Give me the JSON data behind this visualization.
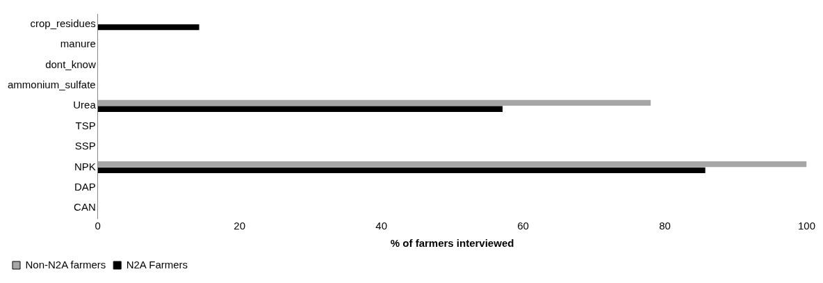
{
  "chart_data": {
    "type": "bar",
    "orientation": "horizontal",
    "xlabel": "% of farmers interviewed",
    "categories": [
      "crop_residues",
      "manure",
      "dont_know",
      "ammonium_sulfate",
      "Urea",
      "TSP",
      "SSP",
      "NPK",
      "DAP",
      "CAN"
    ],
    "series": [
      {
        "name": "Non-N2A farmers",
        "color": "#a6a6a6",
        "values": [
          0,
          0,
          0,
          0,
          78,
          0,
          0,
          100,
          0,
          0
        ]
      },
      {
        "name": "N2A Farmers",
        "color": "#000000",
        "values": [
          14.3,
          0,
          0,
          0,
          57.1,
          0,
          0,
          85.7,
          0,
          0
        ]
      }
    ],
    "xlim": [
      0,
      100
    ],
    "xticks": [
      0,
      20,
      40,
      60,
      80,
      100
    ],
    "grid": false,
    "legend": "bottom left"
  }
}
